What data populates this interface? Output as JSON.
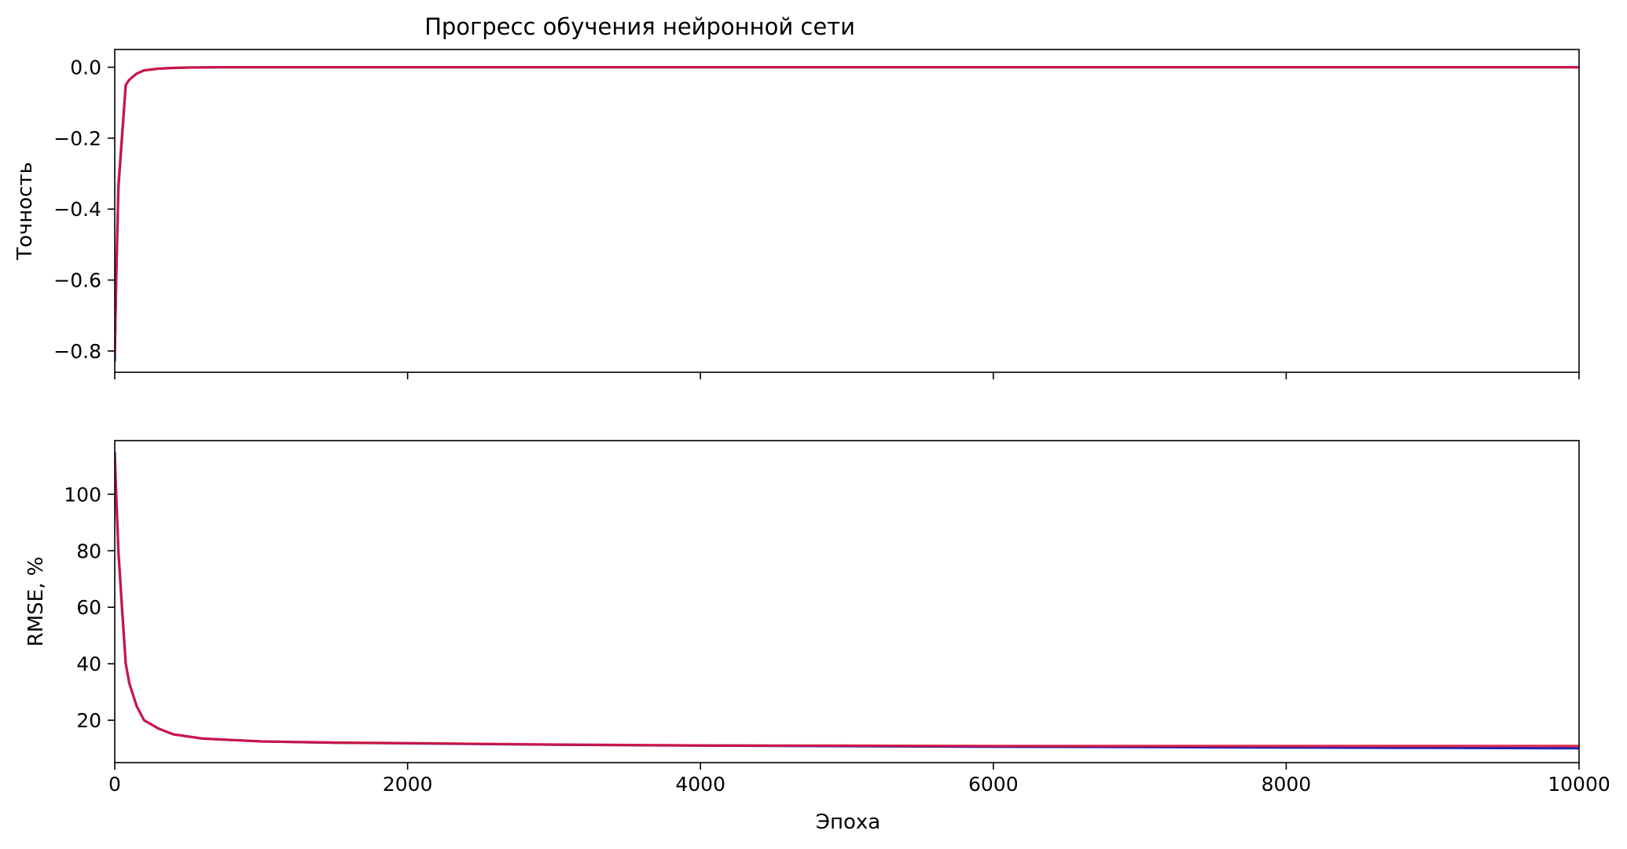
{
  "figure": {
    "title": "Прогресс обучения нейронной сети",
    "xlabel": "Эпоха"
  },
  "colors": {
    "series_blue": "#1f22b4",
    "series_red": "#dc143c"
  },
  "chart_data": [
    {
      "type": "line",
      "title": "Прогресс обучения нейронной сети",
      "xlabel": "",
      "ylabel": "Точность",
      "xlim": [
        0,
        10000
      ],
      "ylim": [
        -0.86,
        0.05
      ],
      "yticks": [
        0.0,
        -0.2,
        -0.4,
        -0.6,
        -0.8
      ],
      "ytick_labels": [
        "0.0",
        "−0.2",
        "−0.4",
        "−0.6",
        "−0.8"
      ],
      "xticks": [
        0,
        2000,
        4000,
        6000,
        8000,
        10000
      ],
      "xtick_labels": [],
      "grid": false,
      "legend": "none",
      "series": [
        {
          "color": "#1f22b4",
          "x": [
            0,
            10,
            25,
            50,
            75,
            100,
            150,
            200,
            300,
            400,
            500,
            700,
            1000,
            2000,
            4000,
            6000,
            8000,
            10000
          ],
          "y": [
            -0.83,
            -0.6,
            -0.34,
            -0.2,
            -0.05,
            -0.035,
            -0.018,
            -0.009,
            -0.004,
            -0.002,
            -0.001,
            0.0,
            0.0,
            0.0,
            0.0,
            0.0,
            0.0,
            0.0
          ]
        },
        {
          "color": "#dc143c",
          "x": [
            0,
            10,
            25,
            50,
            75,
            100,
            150,
            200,
            300,
            400,
            500,
            700,
            1000,
            2000,
            4000,
            6000,
            8000,
            10000
          ],
          "y": [
            -0.81,
            -0.58,
            -0.33,
            -0.19,
            -0.05,
            -0.035,
            -0.018,
            -0.009,
            -0.004,
            -0.002,
            -0.001,
            0.0,
            0.0,
            0.0,
            0.0,
            0.0,
            0.0,
            0.0
          ]
        }
      ]
    },
    {
      "type": "line",
      "title": "",
      "xlabel": "Эпоха",
      "ylabel": "RMSE, %",
      "xlim": [
        0,
        10000
      ],
      "ylim": [
        5,
        119
      ],
      "yticks": [
        20,
        40,
        60,
        80,
        100
      ],
      "ytick_labels": [
        "20",
        "40",
        "60",
        "80",
        "100"
      ],
      "xticks": [
        0,
        2000,
        4000,
        6000,
        8000,
        10000
      ],
      "xtick_labels": [
        "0",
        "2000",
        "4000",
        "6000",
        "8000",
        "10000"
      ],
      "grid": false,
      "legend": "none",
      "series": [
        {
          "color": "#1f22b4",
          "x": [
            0,
            10,
            25,
            50,
            75,
            100,
            150,
            200,
            300,
            400,
            600,
            800,
            1000,
            1500,
            2000,
            3000,
            4000,
            5000,
            6000,
            7000,
            8000,
            9000,
            10000
          ],
          "y": [
            115,
            100,
            80,
            60,
            40,
            33,
            25,
            20,
            17,
            15,
            13.5,
            13,
            12.5,
            12,
            11.8,
            11.3,
            11,
            10.8,
            10.6,
            10.5,
            10.3,
            10.2,
            10.1
          ]
        },
        {
          "color": "#dc143c",
          "x": [
            0,
            10,
            25,
            50,
            75,
            100,
            150,
            200,
            300,
            400,
            600,
            800,
            1000,
            1500,
            2000,
            3000,
            4000,
            5000,
            6000,
            7000,
            8000,
            9000,
            10000
          ],
          "y": [
            113,
            99,
            79,
            59,
            40,
            33,
            25,
            20,
            17,
            15,
            13.5,
            13,
            12.5,
            12.1,
            11.9,
            11.4,
            11.1,
            11.0,
            10.9,
            10.9,
            10.9,
            10.9,
            10.9
          ]
        }
      ]
    }
  ]
}
